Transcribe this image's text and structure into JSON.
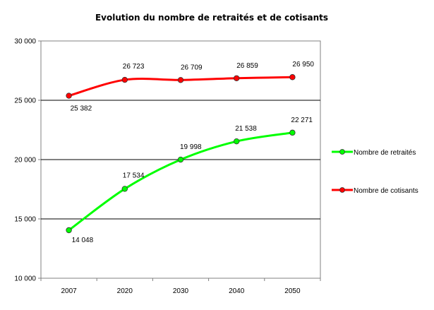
{
  "chart_data": {
    "type": "line",
    "title": "Evolution du nombre de retraités et de cotisants",
    "xlabel": "",
    "ylabel": "",
    "categories": [
      "2007",
      "2020",
      "2030",
      "2040",
      "2050"
    ],
    "ylim": [
      10000,
      30000
    ],
    "yticks": [
      10000,
      15000,
      20000,
      25000,
      30000
    ],
    "ytick_labels": [
      "10 000",
      "15 000",
      "20 000",
      "25 000",
      "30 000"
    ],
    "grid": "horizontal",
    "legend_position": "right",
    "series": [
      {
        "name": "Nombre de retraités",
        "color": "#00ff00",
        "values": [
          14048,
          17534,
          19998,
          21538,
          22271
        ],
        "labels": [
          "14 048",
          "17 534",
          "19 998",
          "21 538",
          "22 271"
        ]
      },
      {
        "name": "Nombre de cotisants",
        "color": "#ff0000",
        "values": [
          25382,
          26723,
          26709,
          26859,
          26950
        ],
        "labels": [
          "25 382",
          "26 723",
          "26 709",
          "26 859",
          "26 950"
        ]
      }
    ]
  }
}
